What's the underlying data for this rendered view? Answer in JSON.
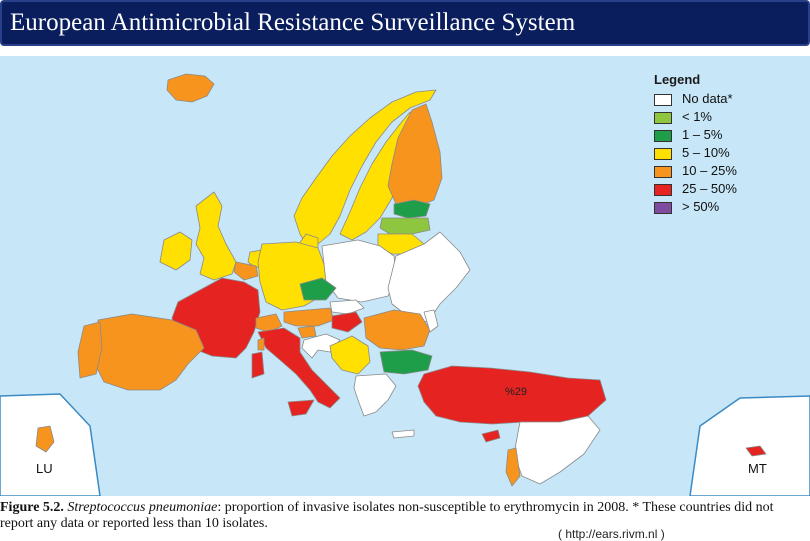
{
  "header": {
    "title": "European  Antimicrobial Resistance Surveillance System"
  },
  "legend": {
    "title": "Legend",
    "items": [
      {
        "label": "No data*",
        "color": "#ffffff"
      },
      {
        "label": "< 1%",
        "color": "#8ec63f"
      },
      {
        "label": "1 – 5%",
        "color": "#1f9e4a"
      },
      {
        "label": "5 – 10%",
        "color": "#ffe000"
      },
      {
        "label": "10 – 25%",
        "color": "#f7941d"
      },
      {
        "label": "25 – 50%",
        "color": "#e52421"
      },
      {
        "label": "> 50%",
        "color": "#7f4ca0"
      }
    ]
  },
  "map": {
    "turkey_label": "%29",
    "insets": {
      "luxembourg": "LU",
      "malta": "MT"
    },
    "colors": {
      "sea": "#c7e6f7",
      "border": "#9a9a9a"
    }
  },
  "caption": {
    "figure_number": "Figure 5.2.",
    "species": "Streptococcus pneumoniae",
    "text": ": proportion of invasive isolates non-susceptible to erythromycin in 2008. * These countries did not report any data or reported less than 10 isolates."
  },
  "source": "( http://ears.rivm.nl )"
}
